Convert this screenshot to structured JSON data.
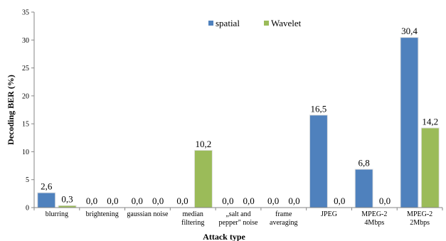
{
  "chart_data": {
    "type": "bar",
    "xlabel": "Attack type",
    "ylabel": "Decoding BER (%)",
    "ylim": [
      0,
      35
    ],
    "yticks": [
      0,
      5,
      10,
      15,
      20,
      25,
      30,
      35
    ],
    "grid": false,
    "legend_position": "top-right",
    "categories": [
      [
        "blurring"
      ],
      [
        "brightening"
      ],
      [
        "gaussian noise"
      ],
      [
        "median",
        "filtering"
      ],
      [
        "„salt and",
        "pepper\" noise"
      ],
      [
        "frame",
        "averaging"
      ],
      [
        "JPEG"
      ],
      [
        "MPEG-2",
        "4Mbps"
      ],
      [
        "MPEG-2",
        "2Mbps"
      ]
    ],
    "series": [
      {
        "name": "spatial",
        "color": "#4f81bd",
        "values": [
          2.6,
          0.0,
          0.0,
          0.0,
          0.0,
          0.0,
          16.5,
          6.8,
          30.4
        ],
        "labels": [
          "2,6",
          "0,0",
          "0,0",
          "0,0",
          "0,0",
          "0,0",
          "16,5",
          "6,8",
          "30,4"
        ]
      },
      {
        "name": "Wavelet",
        "color": "#9bbb59",
        "values": [
          0.3,
          0.0,
          0.0,
          10.2,
          0.0,
          0.0,
          0.0,
          0.0,
          14.2
        ],
        "labels": [
          "0,3",
          "0,0",
          "0,0",
          "10,2",
          "0,0",
          "0,0",
          "0,0",
          "0,0",
          "14,2"
        ]
      }
    ]
  }
}
